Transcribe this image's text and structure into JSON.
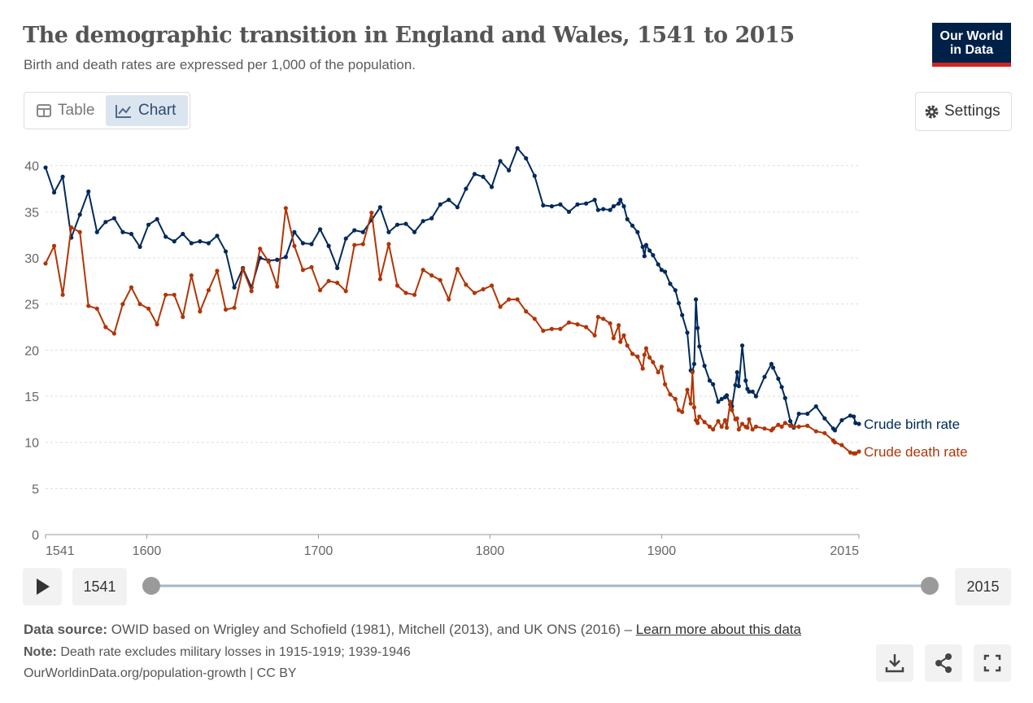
{
  "header": {
    "title": "The demographic transition in England and Wales, 1541 to 2015",
    "subtitle": "Birth and death rates are expressed per 1,000 of the population.",
    "logo": [
      "Our World",
      "in Data"
    ]
  },
  "controls": {
    "tabs": [
      "Table",
      "Chart"
    ],
    "settings": "Settings"
  },
  "timeline": {
    "start": "1541",
    "end": "2015"
  },
  "footer": {
    "source_label": "Data source:",
    "source": "OWID based on Wrigley and Schofield (1981), Mitchell (2013), and UK ONS (2016) –",
    "source_link": "Learn more about this data",
    "note_label": "Note:",
    "note": "Death rate excludes military losses in 1915-1919; 1939-1946",
    "license": "OurWorldinData.org/population-growth | CC BY"
  },
  "chart_data": {
    "type": "line",
    "x": [
      1541,
      1546,
      1551,
      1556,
      1561,
      1566,
      1571,
      1576,
      1581,
      1586,
      1591,
      1596,
      1601,
      1606,
      1611,
      1616,
      1621,
      1626,
      1631,
      1636,
      1641,
      1646,
      1651,
      1656,
      1661,
      1666,
      1671,
      1676,
      1681,
      1686,
      1691,
      1696,
      1701,
      1706,
      1711,
      1716,
      1721,
      1726,
      1731,
      1736,
      1741,
      1746,
      1751,
      1756,
      1761,
      1766,
      1771,
      1776,
      1781,
      1786,
      1791,
      1796,
      1801,
      1806,
      1811,
      1816,
      1821,
      1826,
      1831,
      1836,
      1841,
      1846,
      1851,
      1856,
      1861,
      1863,
      1866,
      1870,
      1872,
      1875,
      1876,
      1878,
      1880,
      1883,
      1886,
      1889,
      1890,
      1891,
      1893,
      1895,
      1898,
      1900,
      1902,
      1905,
      1908,
      1910,
      1912,
      1915,
      1917,
      1918,
      1919,
      1920,
      1921,
      1922,
      1925,
      1928,
      1930,
      1933,
      1935,
      1937,
      1938,
      1940,
      1941,
      1943,
      1944,
      1945,
      1947,
      1949,
      1950,
      1951,
      1953,
      1955,
      1960,
      1964,
      1965,
      1968,
      1970,
      1972,
      1975,
      1977,
      1980,
      1985,
      1990,
      1995,
      2000,
      2001,
      2005,
      2010,
      2012,
      2013,
      2015
    ],
    "series": [
      {
        "name": "Crude birth rate",
        "color": "#00295b",
        "values": [
          39.8,
          37.1,
          38.8,
          32.2,
          34.7,
          37.2,
          32.8,
          33.9,
          34.3,
          32.8,
          32.6,
          31.2,
          33.6,
          34.2,
          32.3,
          31.8,
          32.6,
          31.6,
          31.8,
          31.6,
          32.4,
          30.7,
          26.8,
          28.9,
          26.8,
          30.0,
          29.7,
          29.8,
          30.1,
          32.8,
          31.6,
          31.5,
          33.1,
          31.3,
          28.9,
          32.1,
          33.0,
          32.8,
          34.1,
          35.5,
          32.8,
          33.6,
          33.7,
          32.8,
          34.0,
          34.3,
          35.8,
          36.3,
          35.5,
          37.5,
          39.1,
          38.8,
          37.7,
          40.5,
          39.5,
          41.9,
          40.8,
          38.9,
          35.7,
          35.6,
          35.8,
          35.0,
          35.8,
          35.9,
          36.3,
          35.2,
          35.3,
          35.2,
          35.6,
          35.9,
          36.3,
          35.6,
          34.2,
          33.5,
          32.8,
          31.2,
          30.2,
          31.4,
          30.8,
          30.3,
          29.3,
          28.7,
          28.5,
          27.2,
          26.5,
          25.1,
          23.8,
          21.9,
          17.8,
          17.7,
          18.5,
          25.5,
          22.4,
          20.4,
          18.3,
          16.7,
          16.3,
          14.4,
          14.7,
          14.9,
          15.1,
          14.1,
          13.9,
          16.2,
          17.6,
          16.1,
          20.5,
          16.7,
          15.8,
          15.5,
          15.5,
          15.0,
          17.1,
          18.5,
          18.1,
          16.9,
          16.0,
          14.8,
          12.3,
          11.6,
          13.1,
          13.1,
          13.9,
          12.6,
          11.5,
          11.3,
          12.4,
          12.9,
          12.8,
          12.1,
          12.0
        ]
      },
      {
        "name": "Crude death rate",
        "color": "#b13507",
        "values": [
          29.4,
          31.3,
          26.0,
          33.3,
          32.8,
          24.8,
          24.5,
          22.5,
          21.8,
          25.0,
          26.8,
          25.0,
          24.5,
          22.8,
          26.0,
          26.0,
          23.6,
          28.1,
          24.2,
          26.5,
          28.6,
          24.4,
          24.6,
          28.8,
          26.4,
          31.0,
          29.6,
          26.9,
          35.4,
          31.3,
          28.7,
          29.0,
          26.5,
          27.5,
          27.3,
          26.4,
          31.4,
          31.5,
          34.9,
          27.7,
          31.5,
          27.0,
          26.2,
          26.0,
          28.7,
          28.1,
          27.6,
          25.5,
          28.8,
          27.1,
          26.2,
          26.6,
          27.0,
          24.7,
          25.5,
          25.5,
          24.2,
          23.4,
          22.1,
          22.3,
          22.3,
          23.0,
          22.8,
          22.5,
          21.6,
          23.6,
          23.4,
          22.9,
          21.3,
          22.7,
          20.9,
          21.6,
          20.5,
          19.6,
          19.3,
          18.0,
          19.5,
          20.2,
          19.2,
          18.7,
          17.6,
          18.2,
          16.3,
          15.2,
          14.7,
          13.5,
          13.3,
          15.7,
          14.2,
          17.6,
          13.8,
          12.4,
          12.1,
          12.8,
          12.2,
          11.7,
          11.4,
          12.3,
          11.7,
          12.4,
          11.6,
          14.4,
          13.5,
          12.5,
          12.6,
          11.4,
          12.0,
          11.7,
          11.6,
          12.5,
          11.4,
          11.7,
          11.5,
          11.3,
          11.5,
          11.9,
          11.7,
          12.1,
          11.8,
          11.7,
          11.7,
          11.8,
          11.2,
          11.0,
          10.2,
          10.0,
          9.7,
          8.9,
          8.8,
          8.8,
          9.0
        ]
      }
    ],
    "xlim": [
      1541,
      2015
    ],
    "xticks": [
      1541,
      1600,
      1700,
      1800,
      1900,
      2015
    ],
    "ylim": [
      0,
      42
    ],
    "yticks": [
      0,
      5,
      10,
      15,
      20,
      25,
      30,
      35,
      40
    ],
    "grid": true
  }
}
